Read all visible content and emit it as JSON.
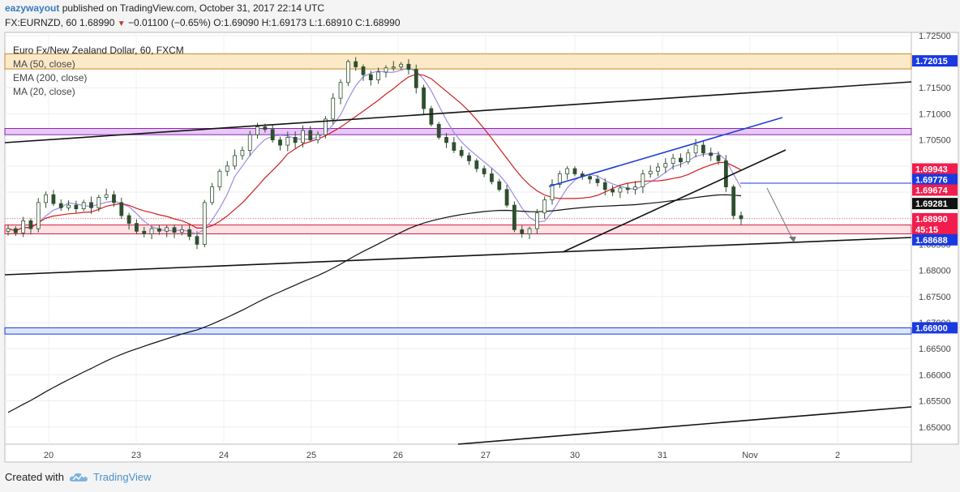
{
  "header": {
    "user": "eazywayout",
    "published": "published on TradingView.com, October 31, 2017 22:14 UTC",
    "symbol": "FX:EURNZD, 60",
    "last": "1.68990",
    "change": "−0.01100 (−0.65%)",
    "o_label": "O:",
    "o": "1.69090",
    "h_label": "H:",
    "h": "1.69173",
    "l_label": "L:",
    "l": "1.68910",
    "c_label": "C:",
    "c": "1.68990"
  },
  "legend": {
    "title": "Euro Fx/New Zealand Dollar, 60, FXCM",
    "items": [
      "MA (50, close)",
      "EMA (200, close)",
      "MA (20, close)"
    ]
  },
  "footer": {
    "created_with": "Created with",
    "brand": "TradingView"
  },
  "colors": {
    "candle": "#2f4f2f",
    "ma50": "#d02020",
    "ema200": "#111111",
    "ma20": "#9b8ce0",
    "zone_fill": "#e7c8f7",
    "zone_edge": "#8e24aa",
    "blue_line": "#1f3fd6",
    "tan_fill": "#fbe9c7",
    "tan_edge": "#c48a2f",
    "label_red": "#f21d4d",
    "label_blue": "#1a39e0"
  },
  "chart_data": {
    "type": "candlestick",
    "ylim": [
      1.6467,
      1.7256
    ],
    "y_ticks": [
      "1.72500",
      "1.72000",
      "1.71500",
      "1.71000",
      "1.70500",
      "1.70000",
      "1.69500",
      "1.69000",
      "1.68500",
      "1.68000",
      "1.67500",
      "1.67000",
      "1.66500",
      "1.66000",
      "1.65500",
      "1.65000"
    ],
    "x_ticks": [
      "20",
      "23",
      "24",
      "25",
      "26",
      "27",
      "30",
      "31",
      "Nov",
      "2"
    ],
    "price_labels": [
      {
        "text": "1.72015",
        "value": 1.72015,
        "kind": "blue"
      },
      {
        "text": "1.69943",
        "value": 1.69943,
        "kind": "red"
      },
      {
        "text": "1.69776",
        "value": 1.69776,
        "kind": "blue"
      },
      {
        "text": "1.69674",
        "value": 1.69674,
        "kind": "red"
      },
      {
        "text": "1.69281",
        "value": 1.69281,
        "kind": "black"
      },
      {
        "text": "1.68990",
        "value": 1.6899,
        "kind": "red"
      },
      {
        "text": "45:15",
        "value": 1.6882,
        "kind": "red"
      },
      {
        "text": "1.68688",
        "value": 1.68688,
        "kind": "blue"
      },
      {
        "text": "1.66900",
        "value": 1.669,
        "kind": "blue"
      }
    ],
    "zones": [
      {
        "kind": "tan",
        "from": 1.7215,
        "to": 1.7186
      },
      {
        "kind": "purple",
        "from": 1.7072,
        "to": 1.706
      },
      {
        "kind": "red",
        "from": 1.6887,
        "to": 1.687
      },
      {
        "kind": "blue",
        "from": 1.669,
        "to": 1.6678
      }
    ],
    "close_series": [
      1.688,
      1.6872,
      1.6895,
      1.688,
      1.693,
      1.6945,
      1.6928,
      1.692,
      1.6925,
      1.6918,
      1.693,
      1.692,
      1.694,
      1.6945,
      1.693,
      1.6905,
      1.689,
      1.6875,
      1.687,
      1.688,
      1.6875,
      1.6882,
      1.6873,
      1.6878,
      1.6865,
      1.685,
      1.693,
      1.696,
      1.699,
      1.7,
      1.702,
      1.703,
      1.706,
      1.7075,
      1.707,
      1.705,
      1.704,
      1.7055,
      1.7045,
      1.7068,
      1.705,
      1.706,
      1.709,
      1.713,
      1.716,
      1.72,
      1.719,
      1.7175,
      1.7165,
      1.718,
      1.7188,
      1.719,
      1.7195,
      1.7185,
      1.715,
      1.711,
      1.708,
      1.7055,
      1.7045,
      1.703,
      1.702,
      1.701,
      1.6995,
      1.6985,
      1.697,
      1.6955,
      1.6925,
      1.6878,
      1.687,
      1.688,
      1.691,
      1.6935,
      1.6965,
      1.6985,
      1.6995,
      1.6985,
      1.698,
      1.6975,
      1.6968,
      1.6955,
      1.695,
      1.6958,
      1.6955,
      1.696,
      1.6985,
      1.699,
      1.6998,
      1.7005,
      1.7015,
      1.7008,
      1.7025,
      1.704,
      1.7025,
      1.702,
      1.701,
      1.696,
      1.6905,
      1.6899
    ]
  }
}
